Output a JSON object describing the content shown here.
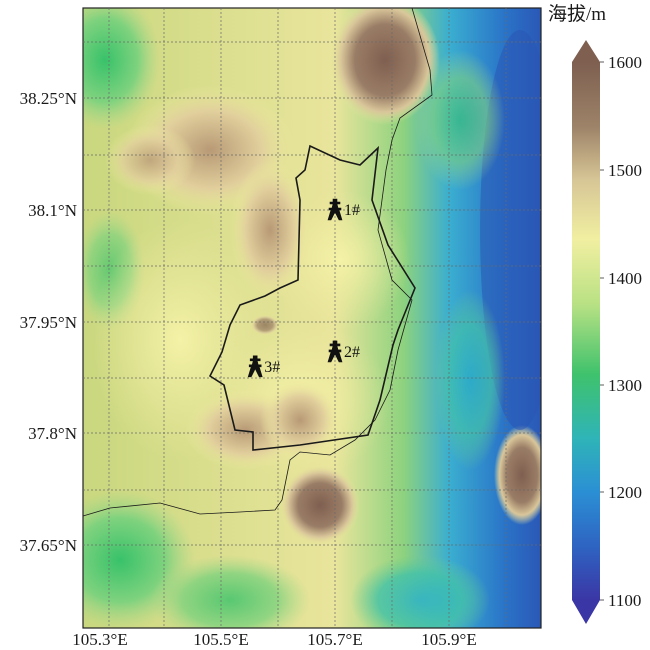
{
  "map": {
    "lon_ticks": [
      "105.3°E",
      "105.5°E",
      "105.7°E",
      "105.9°E"
    ],
    "lat_ticks": [
      "38.25°N",
      "38.1°N",
      "37.95°N",
      "37.8°N",
      "37.65°N"
    ],
    "colorbar": {
      "title": "海拔/m",
      "labels": [
        "1600",
        "1500",
        "1400",
        "1300",
        "1200",
        "1100"
      ],
      "range_m": [
        1100,
        1600
      ]
    },
    "stations": [
      {
        "label": "1#",
        "lon": 105.7,
        "lat": 38.1
      },
      {
        "label": "2#",
        "lon": 105.7,
        "lat": 37.91
      },
      {
        "label": "3#",
        "lon": 105.56,
        "lat": 37.89
      }
    ],
    "colors": {
      "low": "#3a3aa8",
      "mid_low": "#2f8fd0",
      "mid": "#3cc07a",
      "mid_high": "#f3f29a",
      "high": "#7e5f50"
    }
  }
}
